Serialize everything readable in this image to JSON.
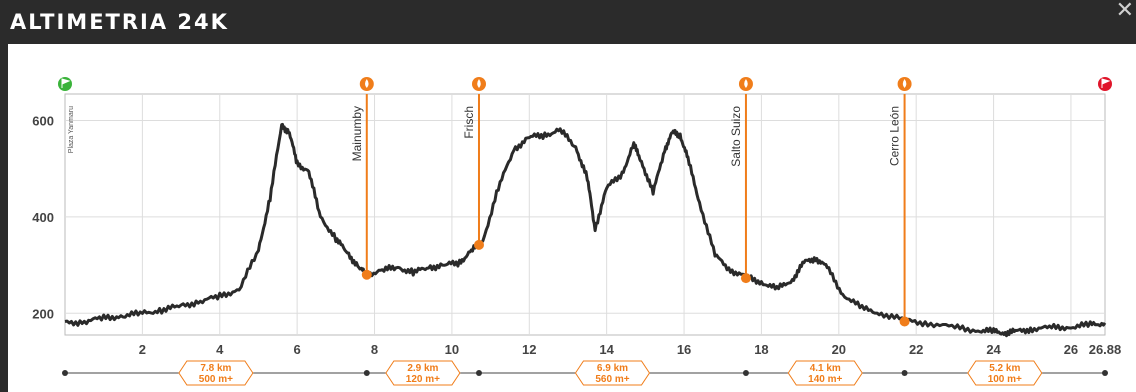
{
  "header": {
    "title": "ALTIMETRIA 24K",
    "close_icon": "close-icon"
  },
  "colors": {
    "line": "#2a2a2a",
    "accent": "#f07d1a",
    "start": "#3ab33a",
    "finish": "#e0152a",
    "grid": "#dddddd"
  },
  "chart_data": {
    "type": "area",
    "title": "",
    "xlabel": "",
    "ylabel": "",
    "xlim": [
      0,
      26.88
    ],
    "ylim": [
      155,
      655
    ],
    "grid": true,
    "x_ticks": [
      "2",
      "4",
      "6",
      "8",
      "10",
      "12",
      "14",
      "16",
      "18",
      "20",
      "22",
      "24",
      "26",
      "26.88"
    ],
    "y_ticks": [
      "200",
      "400",
      "600"
    ],
    "series": [
      {
        "x": [
          0,
          0.5,
          1,
          1.5,
          2,
          2.5,
          3,
          3.5,
          4,
          4.5,
          5,
          5.3,
          5.6,
          5.8,
          6,
          6.3,
          6.6,
          7,
          7.3,
          7.6,
          7.8,
          8.2,
          8.6,
          9,
          9.4,
          9.8,
          10.2,
          10.5,
          10.8,
          11.2,
          11.6,
          12,
          12.4,
          12.8,
          13.2,
          13.5,
          13.7,
          14,
          14.4,
          14.7,
          14.9,
          15.2,
          15.5,
          15.7,
          15.9,
          16.1,
          16.4,
          16.8,
          17.2,
          17.6,
          18,
          18.4,
          18.8,
          19.1,
          19.4,
          19.7,
          20.1,
          20.6,
          21.1,
          21.7,
          22.3,
          23,
          23.6,
          24,
          24.3,
          24.6,
          25,
          25.5,
          26,
          26.5,
          26.88
        ],
        "values": [
          180,
          183,
          190,
          195,
          200,
          207,
          215,
          225,
          235,
          250,
          330,
          440,
          590,
          575,
          510,
          495,
          400,
          355,
          325,
          295,
          280,
          290,
          295,
          285,
          295,
          300,
          305,
          330,
          350,
          460,
          540,
          565,
          570,
          580,
          545,
          480,
          375,
          460,
          490,
          550,
          515,
          450,
          540,
          575,
          570,
          520,
          430,
          320,
          290,
          275,
          265,
          250,
          270,
          305,
          315,
          295,
          240,
          210,
          200,
          185,
          180,
          170,
          165,
          162,
          160,
          162,
          168,
          170,
          172,
          176,
          180
        ]
      }
    ],
    "markers": [
      {
        "label": "Plaza Yanmaru",
        "type": "start",
        "x": 0
      },
      {
        "label": "Mainumby",
        "type": "aid",
        "x": 7.8,
        "y": 280
      },
      {
        "label": "Frisch",
        "type": "aid",
        "x": 10.7,
        "y": 342
      },
      {
        "label": "Salto Suizo",
        "type": "aid",
        "x": 17.6,
        "y": 273
      },
      {
        "label": "Cerro León",
        "type": "aid",
        "x": 21.7,
        "y": 183
      },
      {
        "label": "",
        "type": "finish",
        "x": 26.88
      }
    ],
    "segments": [
      {
        "from": 0,
        "to": 7.8,
        "dist": "7.8 km",
        "gain": "500 m+"
      },
      {
        "from": 7.8,
        "to": 10.7,
        "dist": "2.9 km",
        "gain": "120 m+"
      },
      {
        "from": 10.7,
        "to": 17.6,
        "dist": "6.9 km",
        "gain": "560 m+"
      },
      {
        "from": 17.6,
        "to": 21.7,
        "dist": "4.1 km",
        "gain": "140 m+"
      },
      {
        "from": 21.7,
        "to": 26.88,
        "dist": "5.2 km",
        "gain": "100 m+"
      }
    ]
  }
}
